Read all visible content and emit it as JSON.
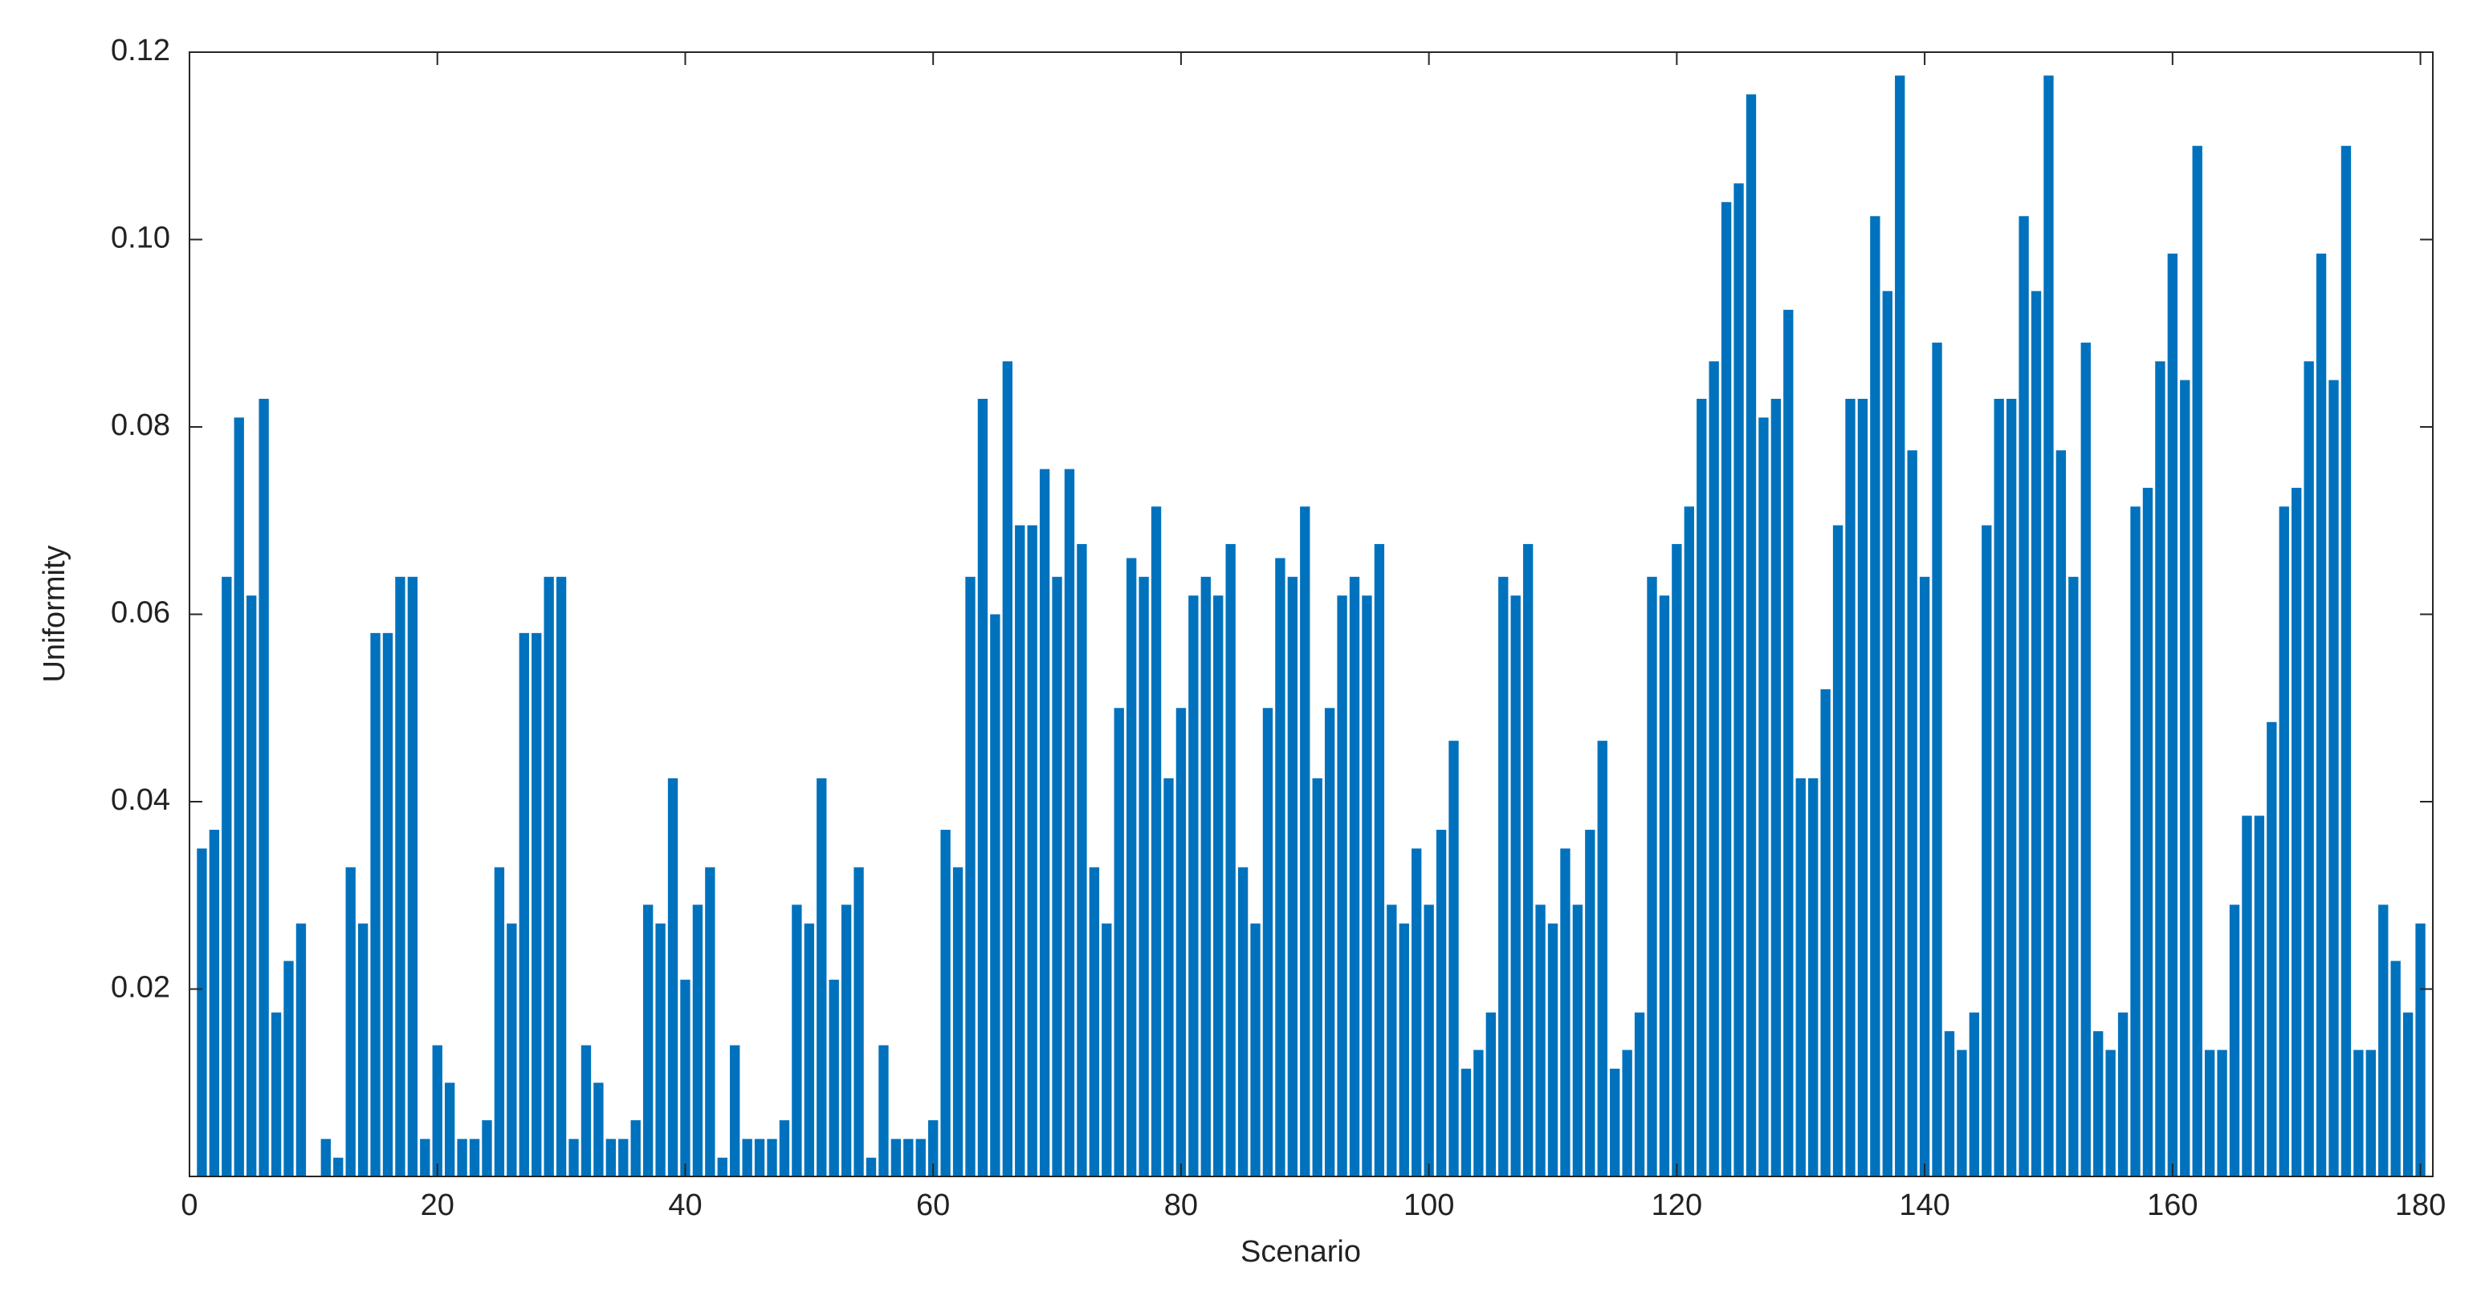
{
  "chart_data": {
    "type": "bar",
    "xlabel": "Scenario",
    "ylabel": "Uniformity",
    "color": "#0072bd",
    "x": [
      1,
      2,
      3,
      4,
      5,
      6,
      7,
      8,
      9,
      10,
      11,
      12,
      13,
      14,
      15,
      16,
      17,
      18,
      19,
      20,
      21,
      22,
      23,
      24,
      25,
      26,
      27,
      28,
      29,
      30,
      31,
      32,
      33,
      34,
      35,
      36,
      37,
      38,
      39,
      40,
      41,
      42,
      43,
      44,
      45,
      46,
      47,
      48,
      49,
      50,
      51,
      52,
      53,
      54,
      55,
      56,
      57,
      58,
      59,
      60,
      61,
      62,
      63,
      64,
      65,
      66,
      67,
      68,
      69,
      70,
      71,
      72,
      73,
      74,
      75,
      76,
      77,
      78,
      79,
      80,
      81,
      82,
      83,
      84,
      85,
      86,
      87,
      88,
      89,
      90,
      91,
      92,
      93,
      94,
      95,
      96,
      97,
      98,
      99,
      100,
      101,
      102,
      103,
      104,
      105,
      106,
      107,
      108,
      109,
      110,
      111,
      112,
      113,
      114,
      115,
      116,
      117,
      118,
      119,
      120,
      121,
      122,
      123,
      124,
      125,
      126,
      127,
      128,
      129,
      130,
      131,
      132,
      133,
      134,
      135,
      136,
      137,
      138,
      139,
      140,
      141,
      142,
      143,
      144,
      145,
      146,
      147,
      148,
      149,
      150,
      151,
      152,
      153,
      154,
      155,
      156,
      157,
      158,
      159,
      160,
      161,
      162,
      163,
      164,
      165,
      166,
      167,
      168,
      169,
      170,
      171,
      172,
      173,
      174,
      175,
      176,
      177,
      178,
      179,
      180
    ],
    "values": [
      0.035,
      0.037,
      0.064,
      0.081,
      0.062,
      0.083,
      0.0175,
      0.023,
      0.027,
      0,
      0.004,
      0.002,
      0.033,
      0.027,
      0.058,
      0.058,
      0.064,
      0.064,
      0.004,
      0.014,
      0.01,
      0.004,
      0.004,
      0.006,
      0.033,
      0.027,
      0.058,
      0.058,
      0.064,
      0.064,
      0.004,
      0.014,
      0.01,
      0.004,
      0.004,
      0.006,
      0.029,
      0.027,
      0.0425,
      0.021,
      0.029,
      0.033,
      0.002,
      0.014,
      0.004,
      0.004,
      0.004,
      0.006,
      0.029,
      0.027,
      0.0425,
      0.021,
      0.029,
      0.033,
      0.002,
      0.014,
      0.004,
      0.004,
      0.004,
      0.006,
      0.037,
      0.033,
      0.064,
      0.083,
      0.06,
      0.087,
      0.0695,
      0.0695,
      0.0755,
      0.064,
      0.0755,
      0.0675,
      0.033,
      0.027,
      0.05,
      0.066,
      0.064,
      0.0715,
      0.0425,
      0.05,
      0.062,
      0.064,
      0.062,
      0.0675,
      0.033,
      0.027,
      0.05,
      0.066,
      0.064,
      0.0715,
      0.0425,
      0.05,
      0.062,
      0.064,
      0.062,
      0.0675,
      0.029,
      0.027,
      0.035,
      0.029,
      0.037,
      0.0465,
      0.0115,
      0.0135,
      0.0175,
      0.064,
      0.062,
      0.0675,
      0.029,
      0.027,
      0.035,
      0.029,
      0.037,
      0.0465,
      0.0115,
      0.0135,
      0.0175,
      0.064,
      0.062,
      0.0675,
      0.0715,
      0.083,
      0.087,
      0.104,
      0.106,
      0.1155,
      0.081,
      0.083,
      0.0925,
      0.0425,
      0.0425,
      0.052,
      0.0695,
      0.083,
      0.083,
      0.1025,
      0.0945,
      0.1175,
      0.0775,
      0.064,
      0.089,
      0.0155,
      0.0135,
      0.0175,
      0.0695,
      0.083,
      0.083,
      0.1025,
      0.0945,
      0.1175,
      0.0775,
      0.064,
      0.089,
      0.0155,
      0.0135,
      0.0175,
      0.0715,
      0.0735,
      0.087,
      0.0985,
      0.085,
      0.11,
      0.0135,
      0.0135,
      0.029,
      0.0385,
      0.0385,
      0.0485,
      0.0715,
      0.0735,
      0.087,
      0.0985,
      0.085,
      0.11,
      0.0135,
      0.0135,
      0.029,
      0.023,
      0.0175,
      0.027
    ],
    "xlim": [
      0,
      181
    ],
    "xticks": [
      0,
      20,
      40,
      60,
      80,
      100,
      120,
      140,
      160,
      180
    ],
    "ylim": [
      0,
      0.12
    ],
    "yticks": [
      0.02,
      0.04,
      0.06,
      0.08,
      {
        "value": 0.1,
        "label": "0.10"
      },
      0.12
    ]
  }
}
